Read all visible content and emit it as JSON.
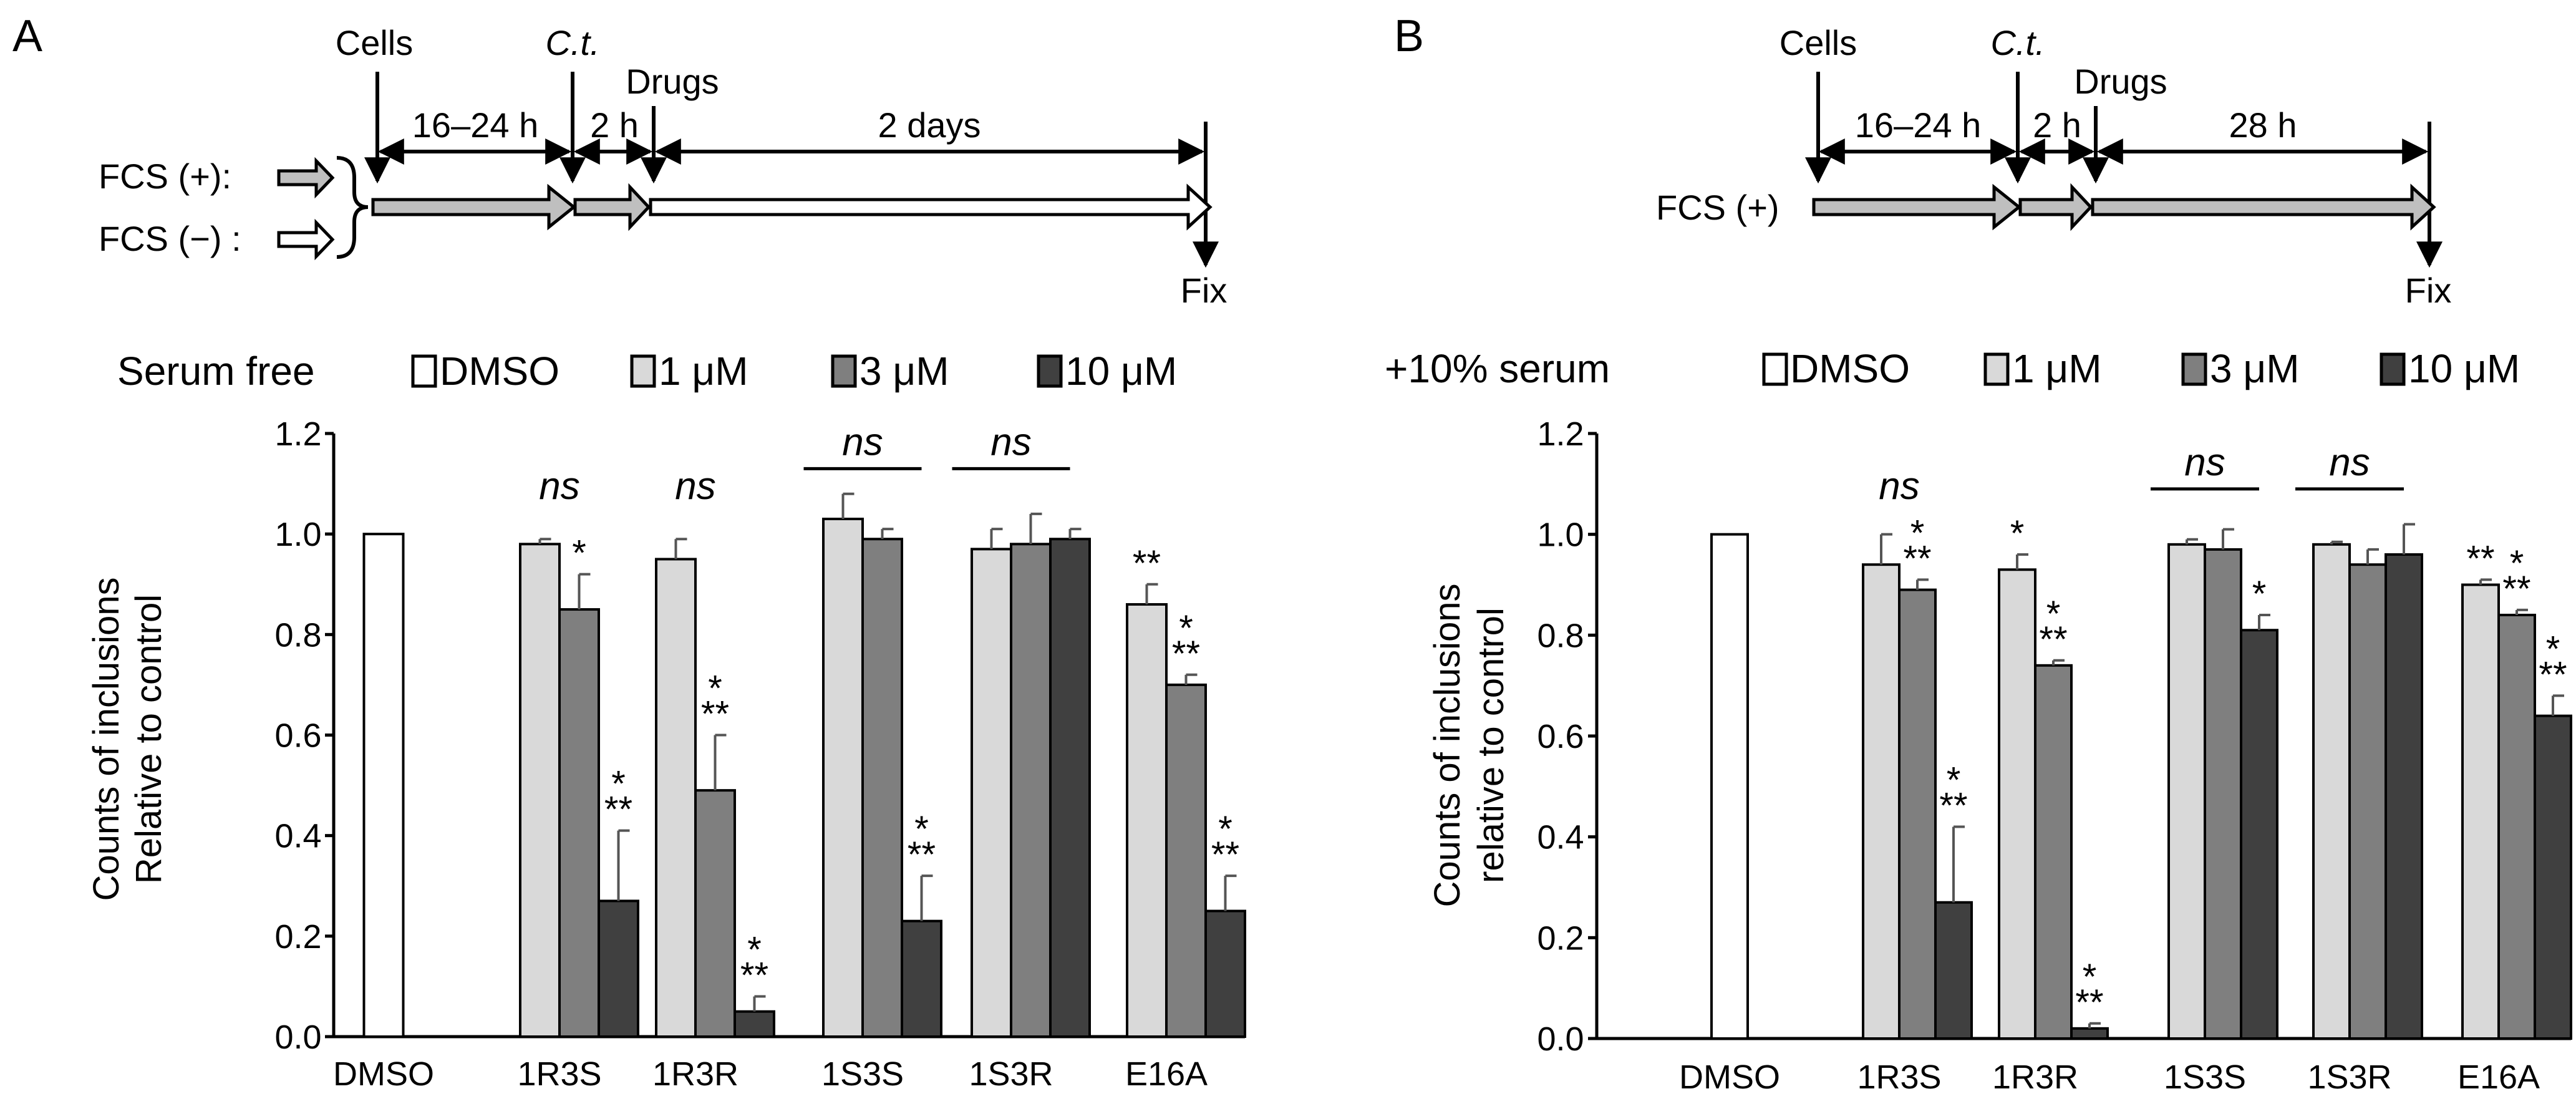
{
  "colors": {
    "dmso": "#ffffff",
    "c1": "#d9d9d9",
    "c3": "#7f7f7f",
    "c10": "#404040",
    "timeline_gray": "#bfbfbf",
    "stroke": "#000000"
  },
  "panels": [
    {
      "label": "A",
      "timeline": {
        "cells": "Cells",
        "ct": "C.t.",
        "drugs": "Drugs",
        "seg1": "16–24 h",
        "seg2": "2 h",
        "seg3": "2 days",
        "fix": "Fix",
        "fcs_plus": "FCS (+):",
        "fcs_minus": "FCS (−) :"
      },
      "legend": {
        "title": "Serum free",
        "items": [
          "DMSO",
          "1 μM",
          "3 μM",
          "10 μM"
        ]
      },
      "chart_data": {
        "type": "bar",
        "ylabel_lines": [
          "Counts of inclusions",
          "Relative to control"
        ],
        "ylim": [
          0,
          1.2
        ],
        "yticks": [
          "0.0",
          "0.2",
          "0.4",
          "0.6",
          "0.8",
          "1.0",
          "1.2"
        ],
        "categories": [
          "DMSO",
          "1R3S",
          "1R3R",
          "1S3S",
          "1S3R",
          "E16A"
        ],
        "series": [
          {
            "name": "DMSO",
            "values": [
              1.0,
              null,
              null,
              null,
              null,
              null
            ],
            "errors": [
              0,
              null,
              null,
              null,
              null,
              null
            ]
          },
          {
            "name": "1 μM",
            "values": [
              null,
              0.98,
              0.95,
              1.03,
              0.97,
              0.86
            ],
            "errors": [
              null,
              0.01,
              0.04,
              0.05,
              0.04,
              0.04
            ]
          },
          {
            "name": "3 μM",
            "values": [
              null,
              0.85,
              0.49,
              0.99,
              0.98,
              0.7
            ],
            "errors": [
              null,
              0.07,
              0.11,
              0.02,
              0.06,
              0.02
            ]
          },
          {
            "name": "10 μM",
            "values": [
              null,
              0.27,
              0.05,
              0.23,
              0.99,
              0.25
            ],
            "errors": [
              null,
              0.14,
              0.03,
              0.09,
              0.02,
              0.07
            ]
          }
        ],
        "significance": [
          {
            "cat": 1,
            "series": 2,
            "text": "*"
          },
          {
            "cat": 1,
            "series": 3,
            "text": "**",
            "stack": true
          },
          {
            "cat": 2,
            "series": 2,
            "text": "**",
            "stack": true
          },
          {
            "cat": 2,
            "series": 3,
            "text": "**",
            "stack": true
          },
          {
            "cat": 3,
            "series": 3,
            "text": "**",
            "stack": true
          },
          {
            "cat": 5,
            "series": 1,
            "text": "**"
          },
          {
            "cat": 5,
            "series": 2,
            "text": "**",
            "stack": true
          },
          {
            "cat": 5,
            "series": 3,
            "text": "**",
            "stack": true
          }
        ],
        "ns": [
          {
            "cat": 1,
            "text": "ns",
            "bar": false,
            "at": 1.07
          },
          {
            "cat": 2,
            "text": "ns",
            "bar": false,
            "at": 1.07
          },
          {
            "cat": 3,
            "text": "ns",
            "bar": true,
            "at": 1.13
          },
          {
            "cat": 4,
            "text": "ns",
            "bar": true,
            "at": 1.13
          }
        ]
      }
    },
    {
      "label": "B",
      "timeline": {
        "cells": "Cells",
        "ct": "C.t.",
        "drugs": "Drugs",
        "seg1": "16–24 h",
        "seg2": "2 h",
        "seg3": "28 h",
        "fix": "Fix",
        "fcs_plus": "FCS (+)"
      },
      "legend": {
        "title": "+10% serum",
        "items": [
          "DMSO",
          "1 μM",
          "3 μM",
          "10 μM"
        ]
      },
      "chart_data": {
        "type": "bar",
        "ylabel_lines": [
          "Counts of inclusions",
          "relative to control"
        ],
        "ylim": [
          0,
          1.2
        ],
        "yticks": [
          "0.0",
          "0.2",
          "0.4",
          "0.6",
          "0.8",
          "1.0",
          "1.2"
        ],
        "categories": [
          "DMSO",
          "1R3S",
          "1R3R",
          "1S3S",
          "1S3R",
          "E16A"
        ],
        "series": [
          {
            "name": "DMSO",
            "values": [
              1.0,
              null,
              null,
              null,
              null,
              null
            ],
            "errors": [
              0,
              null,
              null,
              null,
              null,
              null
            ]
          },
          {
            "name": "1 μM",
            "values": [
              null,
              0.94,
              0.93,
              0.98,
              0.98,
              0.9
            ],
            "errors": [
              null,
              0.06,
              0.03,
              0.01,
              0.005,
              0.01
            ]
          },
          {
            "name": "3 μM",
            "values": [
              null,
              0.89,
              0.74,
              0.97,
              0.94,
              0.84
            ],
            "errors": [
              null,
              0.02,
              0.01,
              0.04,
              0.03,
              0.01
            ]
          },
          {
            "name": "10 μM",
            "values": [
              null,
              0.27,
              0.02,
              0.81,
              0.96,
              0.64
            ],
            "errors": [
              null,
              0.15,
              0.01,
              0.03,
              0.06,
              0.04
            ]
          }
        ],
        "significance": [
          {
            "cat": 1,
            "series": 2,
            "text": "**",
            "stack": true
          },
          {
            "cat": 1,
            "series": 3,
            "text": "**",
            "stack": true
          },
          {
            "cat": 2,
            "series": 1,
            "text": "*"
          },
          {
            "cat": 2,
            "series": 2,
            "text": "**",
            "stack": true
          },
          {
            "cat": 2,
            "series": 3,
            "text": "**",
            "stack": true
          },
          {
            "cat": 3,
            "series": 3,
            "text": "*"
          },
          {
            "cat": 5,
            "series": 1,
            "text": "**"
          },
          {
            "cat": 5,
            "series": 2,
            "text": "**",
            "stack": true
          },
          {
            "cat": 5,
            "series": 3,
            "text": "**",
            "stack": true
          }
        ],
        "ns": [
          {
            "cat": 1,
            "text": "ns",
            "bar": false,
            "at": 1.07
          },
          {
            "cat": 3,
            "text": "ns",
            "bar": true,
            "at": 1.09
          },
          {
            "cat": 4,
            "text": "ns",
            "bar": true,
            "at": 1.09
          }
        ]
      }
    }
  ]
}
